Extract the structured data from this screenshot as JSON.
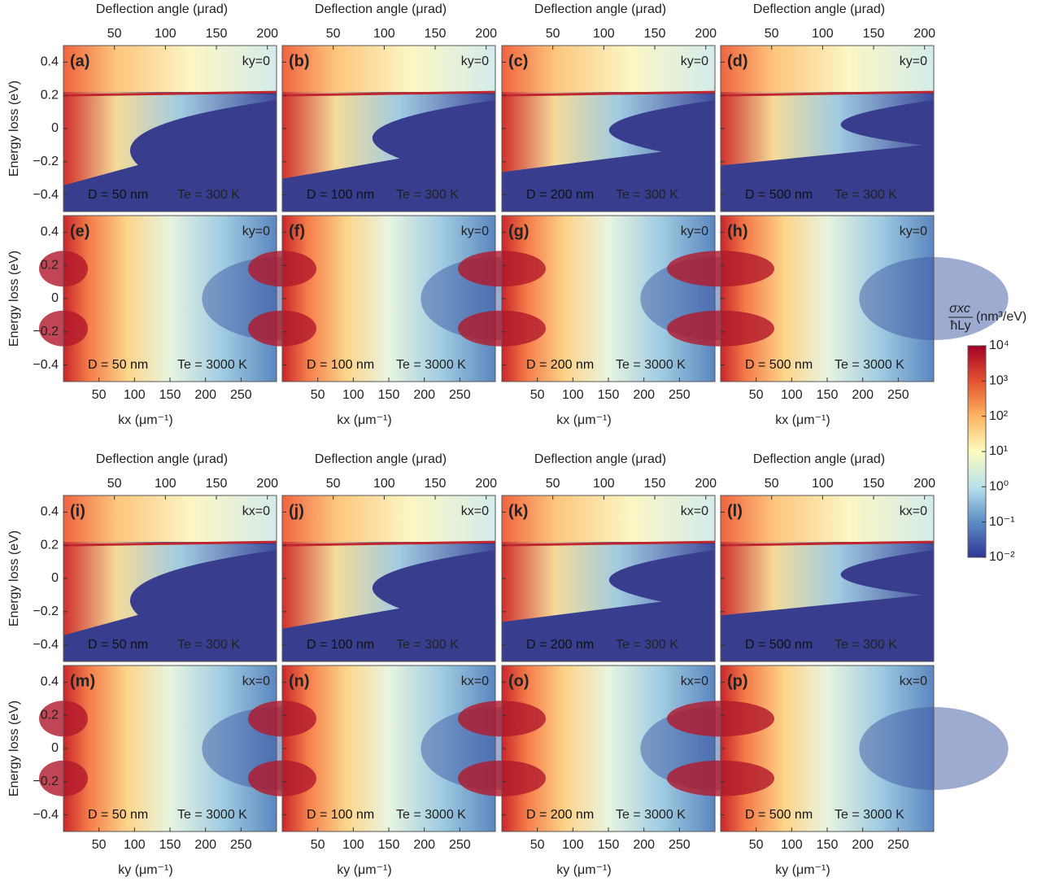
{
  "figure": {
    "ylabel": "Energy loss (eV)",
    "ylim": [
      -0.5,
      0.5
    ],
    "yticks": [
      {
        "value": 0.4,
        "label": "0.4"
      },
      {
        "value": 0.2,
        "label": "0.2"
      },
      0,
      {
        "value": -0.2,
        "label": "−0.2"
      },
      {
        "value": -0.4,
        "label": "−0.4"
      }
    ],
    "xlim": [
      0,
      300
    ],
    "xticks": [
      50,
      100,
      150,
      200,
      250
    ],
    "top_lim": [
      0,
      209
    ],
    "top_ticks": [
      50,
      100,
      150,
      200
    ],
    "groups": [
      {
        "top_axis_label": "Deflection angle (μrad)",
        "x_label": "kx (μm⁻¹)",
        "fixed": "ky=0",
        "panels": [
          {
            "label": "(a)",
            "D": "D = 50 nm",
            "T": "Te = 300 K"
          },
          {
            "label": "(b)",
            "D": "D = 100 nm",
            "T": "Te = 300 K"
          },
          {
            "label": "(c)",
            "D": "D = 200 nm",
            "T": "Te = 300 K"
          },
          {
            "label": "(d)",
            "D": "D = 500 nm",
            "T": "Te = 300 K"
          },
          {
            "label": "(e)",
            "D": "D = 50 nm",
            "T": "Te = 3000 K"
          },
          {
            "label": "(f)",
            "D": "D = 100 nm",
            "T": "Te = 3000 K"
          },
          {
            "label": "(g)",
            "D": "D = 200 nm",
            "T": "Te = 3000 K"
          },
          {
            "label": "(h)",
            "D": "D = 500 nm",
            "T": "Te = 3000 K"
          }
        ]
      },
      {
        "top_axis_label": "Deflection angle (μrad)",
        "x_label": "ky (μm⁻¹)",
        "fixed": "kx=0",
        "panels": [
          {
            "label": "(i)",
            "D": "D = 50 nm",
            "T": "Te = 300 K"
          },
          {
            "label": "(j)",
            "D": "D = 100 nm",
            "T": "Te = 300 K"
          },
          {
            "label": "(k)",
            "D": "D = 200 nm",
            "T": "Te = 300 K"
          },
          {
            "label": "(l)",
            "D": "D = 500 nm",
            "T": "Te = 300 K"
          },
          {
            "label": "(m)",
            "D": "D = 50 nm",
            "T": "Te = 3000 K"
          },
          {
            "label": "(n)",
            "D": "D = 100 nm",
            "T": "Te = 3000 K"
          },
          {
            "label": "(o)",
            "D": "D = 200 nm",
            "T": "Te = 3000 K"
          },
          {
            "label": "(p)",
            "D": "D = 500 nm",
            "T": "Te = 3000 K"
          }
        ]
      }
    ],
    "colorbar": {
      "numerator": "σxc",
      "denominator": "ħLy",
      "unit": "(nm³/eV)",
      "lim": [
        -2,
        4
      ],
      "ticks": [
        {
          "value": 4,
          "label": "10⁴"
        },
        {
          "value": 3,
          "label": "10³"
        },
        {
          "value": 2,
          "label": "10²"
        },
        {
          "value": 1,
          "label": "10¹"
        },
        {
          "value": 0,
          "label": "10⁰"
        },
        {
          "value": -1,
          "label": "10⁻¹"
        },
        {
          "value": -2,
          "label": "10⁻²"
        }
      ]
    }
  }
}
